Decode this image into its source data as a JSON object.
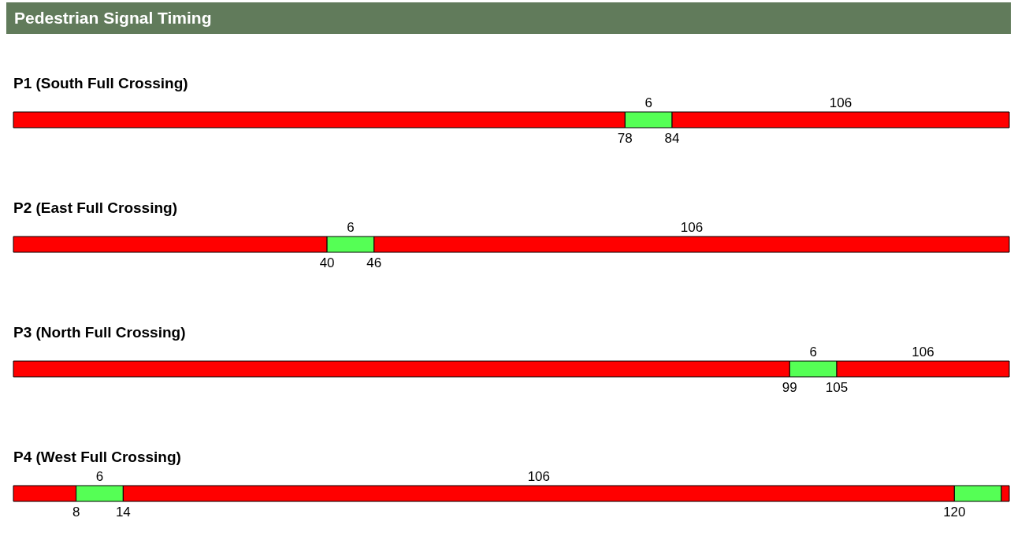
{
  "chart_data": {
    "type": "bar",
    "title": "Pedestrian Signal Timing",
    "orientation": "horizontal",
    "stacked": true,
    "tick_labels": "y",
    "categories": [
      "P1 (South Full Crossing)",
      "P2 (East Full Crossing)",
      "P3 (North Full Crossing)",
      "P4 (West Full Crossing)"
    ],
    "series": [
      {
        "color": "#ff0000",
        "values": [
          78,
          40,
          99,
          8
        ]
      },
      {
        "color": "#55ff55",
        "values": [
          6,
          6,
          6,
          6
        ],
        "value_labels": [
          "6",
          "6",
          "6",
          "6"
        ]
      },
      {
        "color": "#ff0000",
        "values": [
          43,
          81,
          22,
          106
        ]
      },
      {
        "color": "#55ff55",
        "values": [
          null,
          null,
          null,
          6
        ]
      },
      {
        "color": "#ff0000",
        "values": [
          null,
          null,
          null,
          1
        ]
      }
    ],
    "annotations": [
      "106",
      "106",
      "106",
      "106",
      "78",
      "84",
      "40",
      "46",
      "99",
      "105",
      "8",
      "14",
      "120"
    ]
  }
}
